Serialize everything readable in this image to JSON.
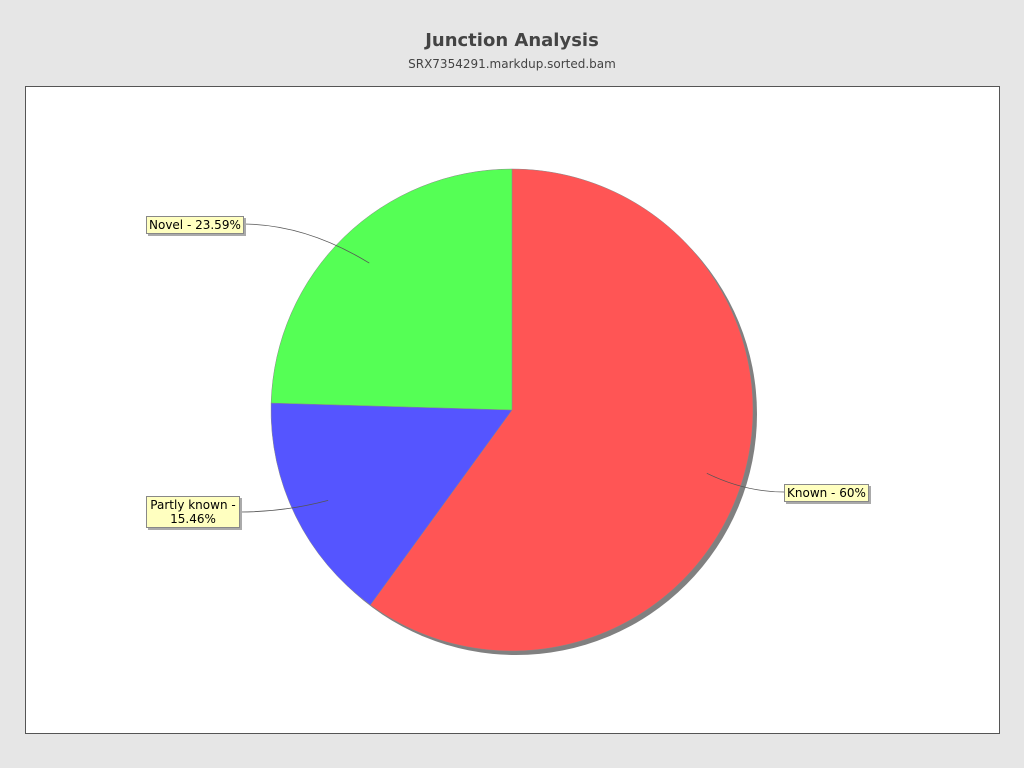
{
  "chart_data": {
    "type": "pie",
    "title": "Junction Analysis",
    "subtitle": "SRX7354291.markdup.sorted.bam",
    "slices": [
      {
        "label": "Known - 60%",
        "name": "Known",
        "value": 60,
        "color": "#ff5555"
      },
      {
        "label": "Partly known - 15.46%",
        "name": "Partly known",
        "value": 15.46,
        "color": "#5555ff"
      },
      {
        "label": "Novel - 23.59%",
        "name": "Novel",
        "value": 23.59,
        "color": "#55ff55"
      }
    ],
    "start_angle": "top",
    "direction": "clockwise",
    "background": "#e6e6e6",
    "plot_background": "#ffffff",
    "label_background": "#ffffc0"
  }
}
